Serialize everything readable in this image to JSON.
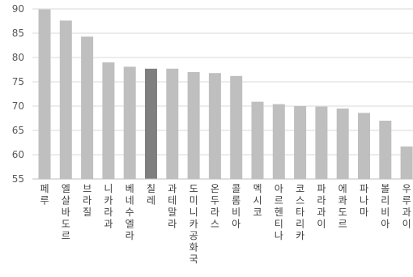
{
  "chart_data": {
    "type": "bar",
    "title": "",
    "xlabel": "",
    "ylabel": "",
    "ylim": [
      55,
      90
    ],
    "yticks": [
      55,
      60,
      65,
      70,
      75,
      80,
      85,
      90
    ],
    "grid": true,
    "categories": [
      "페루",
      "엘살바도르",
      "브라질",
      "니카라과",
      "베네수엘라",
      "칠레",
      "과테말라",
      "도미니카공화국",
      "온두라스",
      "콜롬비아",
      "멕시코",
      "아르헨티나",
      "코스타리카",
      "파라과이",
      "에콰도르",
      "파나마",
      "볼리비아",
      "우루과이"
    ],
    "values": [
      89.9,
      87.6,
      84.3,
      79.0,
      78.1,
      77.7,
      77.7,
      77.0,
      76.8,
      76.2,
      70.9,
      70.4,
      70.0,
      69.9,
      69.5,
      68.6,
      67.0,
      61.7
    ],
    "colors": {
      "default": "#bfbfbf",
      "highlight": "#7f7f7f"
    },
    "highlight_category": "칠레"
  }
}
